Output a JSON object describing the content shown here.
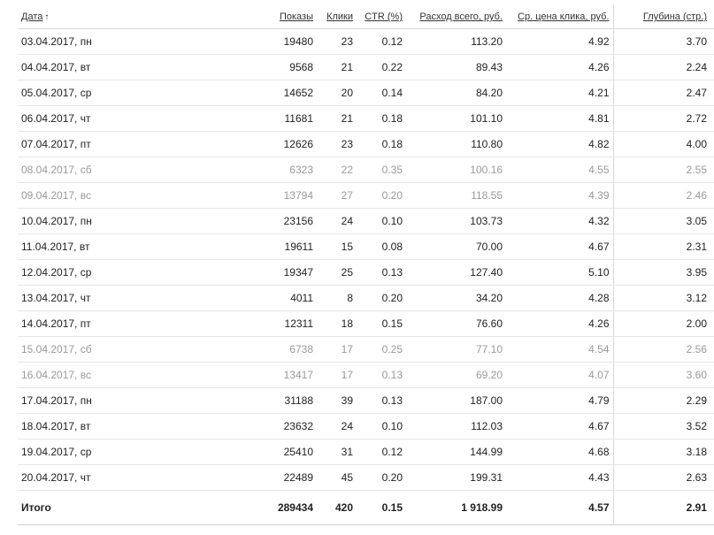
{
  "headers": {
    "date": "Дата",
    "sort_arrow": "↑",
    "shows": "Показы",
    "clicks": "Клики",
    "ctr": "CTR (%)",
    "spend": "Расход всего, руб.",
    "avg_cpc": "Ср. цена клика, руб.",
    "depth": "Глубина (стр.)"
  },
  "rows": [
    {
      "date": "03.04.2017, пн",
      "shows": "19480",
      "clicks": "23",
      "ctr": "0.12",
      "spend": "113.20",
      "cpc": "4.92",
      "depth": "3.70",
      "weekend": false
    },
    {
      "date": "04.04.2017, вт",
      "shows": "9568",
      "clicks": "21",
      "ctr": "0.22",
      "spend": "89.43",
      "cpc": "4.26",
      "depth": "2.24",
      "weekend": false
    },
    {
      "date": "05.04.2017, ср",
      "shows": "14652",
      "clicks": "20",
      "ctr": "0.14",
      "spend": "84.20",
      "cpc": "4.21",
      "depth": "2.47",
      "weekend": false
    },
    {
      "date": "06.04.2017, чт",
      "shows": "11681",
      "clicks": "21",
      "ctr": "0.18",
      "spend": "101.10",
      "cpc": "4.81",
      "depth": "2.72",
      "weekend": false
    },
    {
      "date": "07.04.2017, пт",
      "shows": "12626",
      "clicks": "23",
      "ctr": "0.18",
      "spend": "110.80",
      "cpc": "4.82",
      "depth": "4.00",
      "weekend": false
    },
    {
      "date": "08.04.2017, сб",
      "shows": "6323",
      "clicks": "22",
      "ctr": "0.35",
      "spend": "100.16",
      "cpc": "4.55",
      "depth": "2.55",
      "weekend": true
    },
    {
      "date": "09.04.2017, вс",
      "shows": "13794",
      "clicks": "27",
      "ctr": "0.20",
      "spend": "118.55",
      "cpc": "4.39",
      "depth": "2.46",
      "weekend": true
    },
    {
      "date": "10.04.2017, пн",
      "shows": "23156",
      "clicks": "24",
      "ctr": "0.10",
      "spend": "103.73",
      "cpc": "4.32",
      "depth": "3.05",
      "weekend": false
    },
    {
      "date": "11.04.2017, вт",
      "shows": "19611",
      "clicks": "15",
      "ctr": "0.08",
      "spend": "70.00",
      "cpc": "4.67",
      "depth": "2.31",
      "weekend": false
    },
    {
      "date": "12.04.2017, ср",
      "shows": "19347",
      "clicks": "25",
      "ctr": "0.13",
      "spend": "127.40",
      "cpc": "5.10",
      "depth": "3.95",
      "weekend": false
    },
    {
      "date": "13.04.2017, чт",
      "shows": "4011",
      "clicks": "8",
      "ctr": "0.20",
      "spend": "34.20",
      "cpc": "4.28",
      "depth": "3.12",
      "weekend": false
    },
    {
      "date": "14.04.2017, пт",
      "shows": "12311",
      "clicks": "18",
      "ctr": "0.15",
      "spend": "76.60",
      "cpc": "4.26",
      "depth": "2.00",
      "weekend": false
    },
    {
      "date": "15.04.2017, сб",
      "shows": "6738",
      "clicks": "17",
      "ctr": "0.25",
      "spend": "77.10",
      "cpc": "4.54",
      "depth": "2.56",
      "weekend": true
    },
    {
      "date": "16.04.2017, вс",
      "shows": "13417",
      "clicks": "17",
      "ctr": "0.13",
      "spend": "69.20",
      "cpc": "4.07",
      "depth": "3.60",
      "weekend": true
    },
    {
      "date": "17.04.2017, пн",
      "shows": "31188",
      "clicks": "39",
      "ctr": "0.13",
      "spend": "187.00",
      "cpc": "4.79",
      "depth": "2.29",
      "weekend": false
    },
    {
      "date": "18.04.2017, вт",
      "shows": "23632",
      "clicks": "24",
      "ctr": "0.10",
      "spend": "112.03",
      "cpc": "4.67",
      "depth": "3.52",
      "weekend": false
    },
    {
      "date": "19.04.2017, ср",
      "shows": "25410",
      "clicks": "31",
      "ctr": "0.12",
      "spend": "144.99",
      "cpc": "4.68",
      "depth": "3.18",
      "weekend": false
    },
    {
      "date": "20.04.2017, чт",
      "shows": "22489",
      "clicks": "45",
      "ctr": "0.20",
      "spend": "199.31",
      "cpc": "4.43",
      "depth": "2.63",
      "weekend": false
    }
  ],
  "total": {
    "label": "Итого",
    "shows": "289434",
    "clicks": "420",
    "ctr": "0.15",
    "spend": "1 918.99",
    "cpc": "4.57",
    "depth": "2.91"
  },
  "colors": {
    "weekend_text": "#9a9a9a",
    "text": "#222222"
  }
}
